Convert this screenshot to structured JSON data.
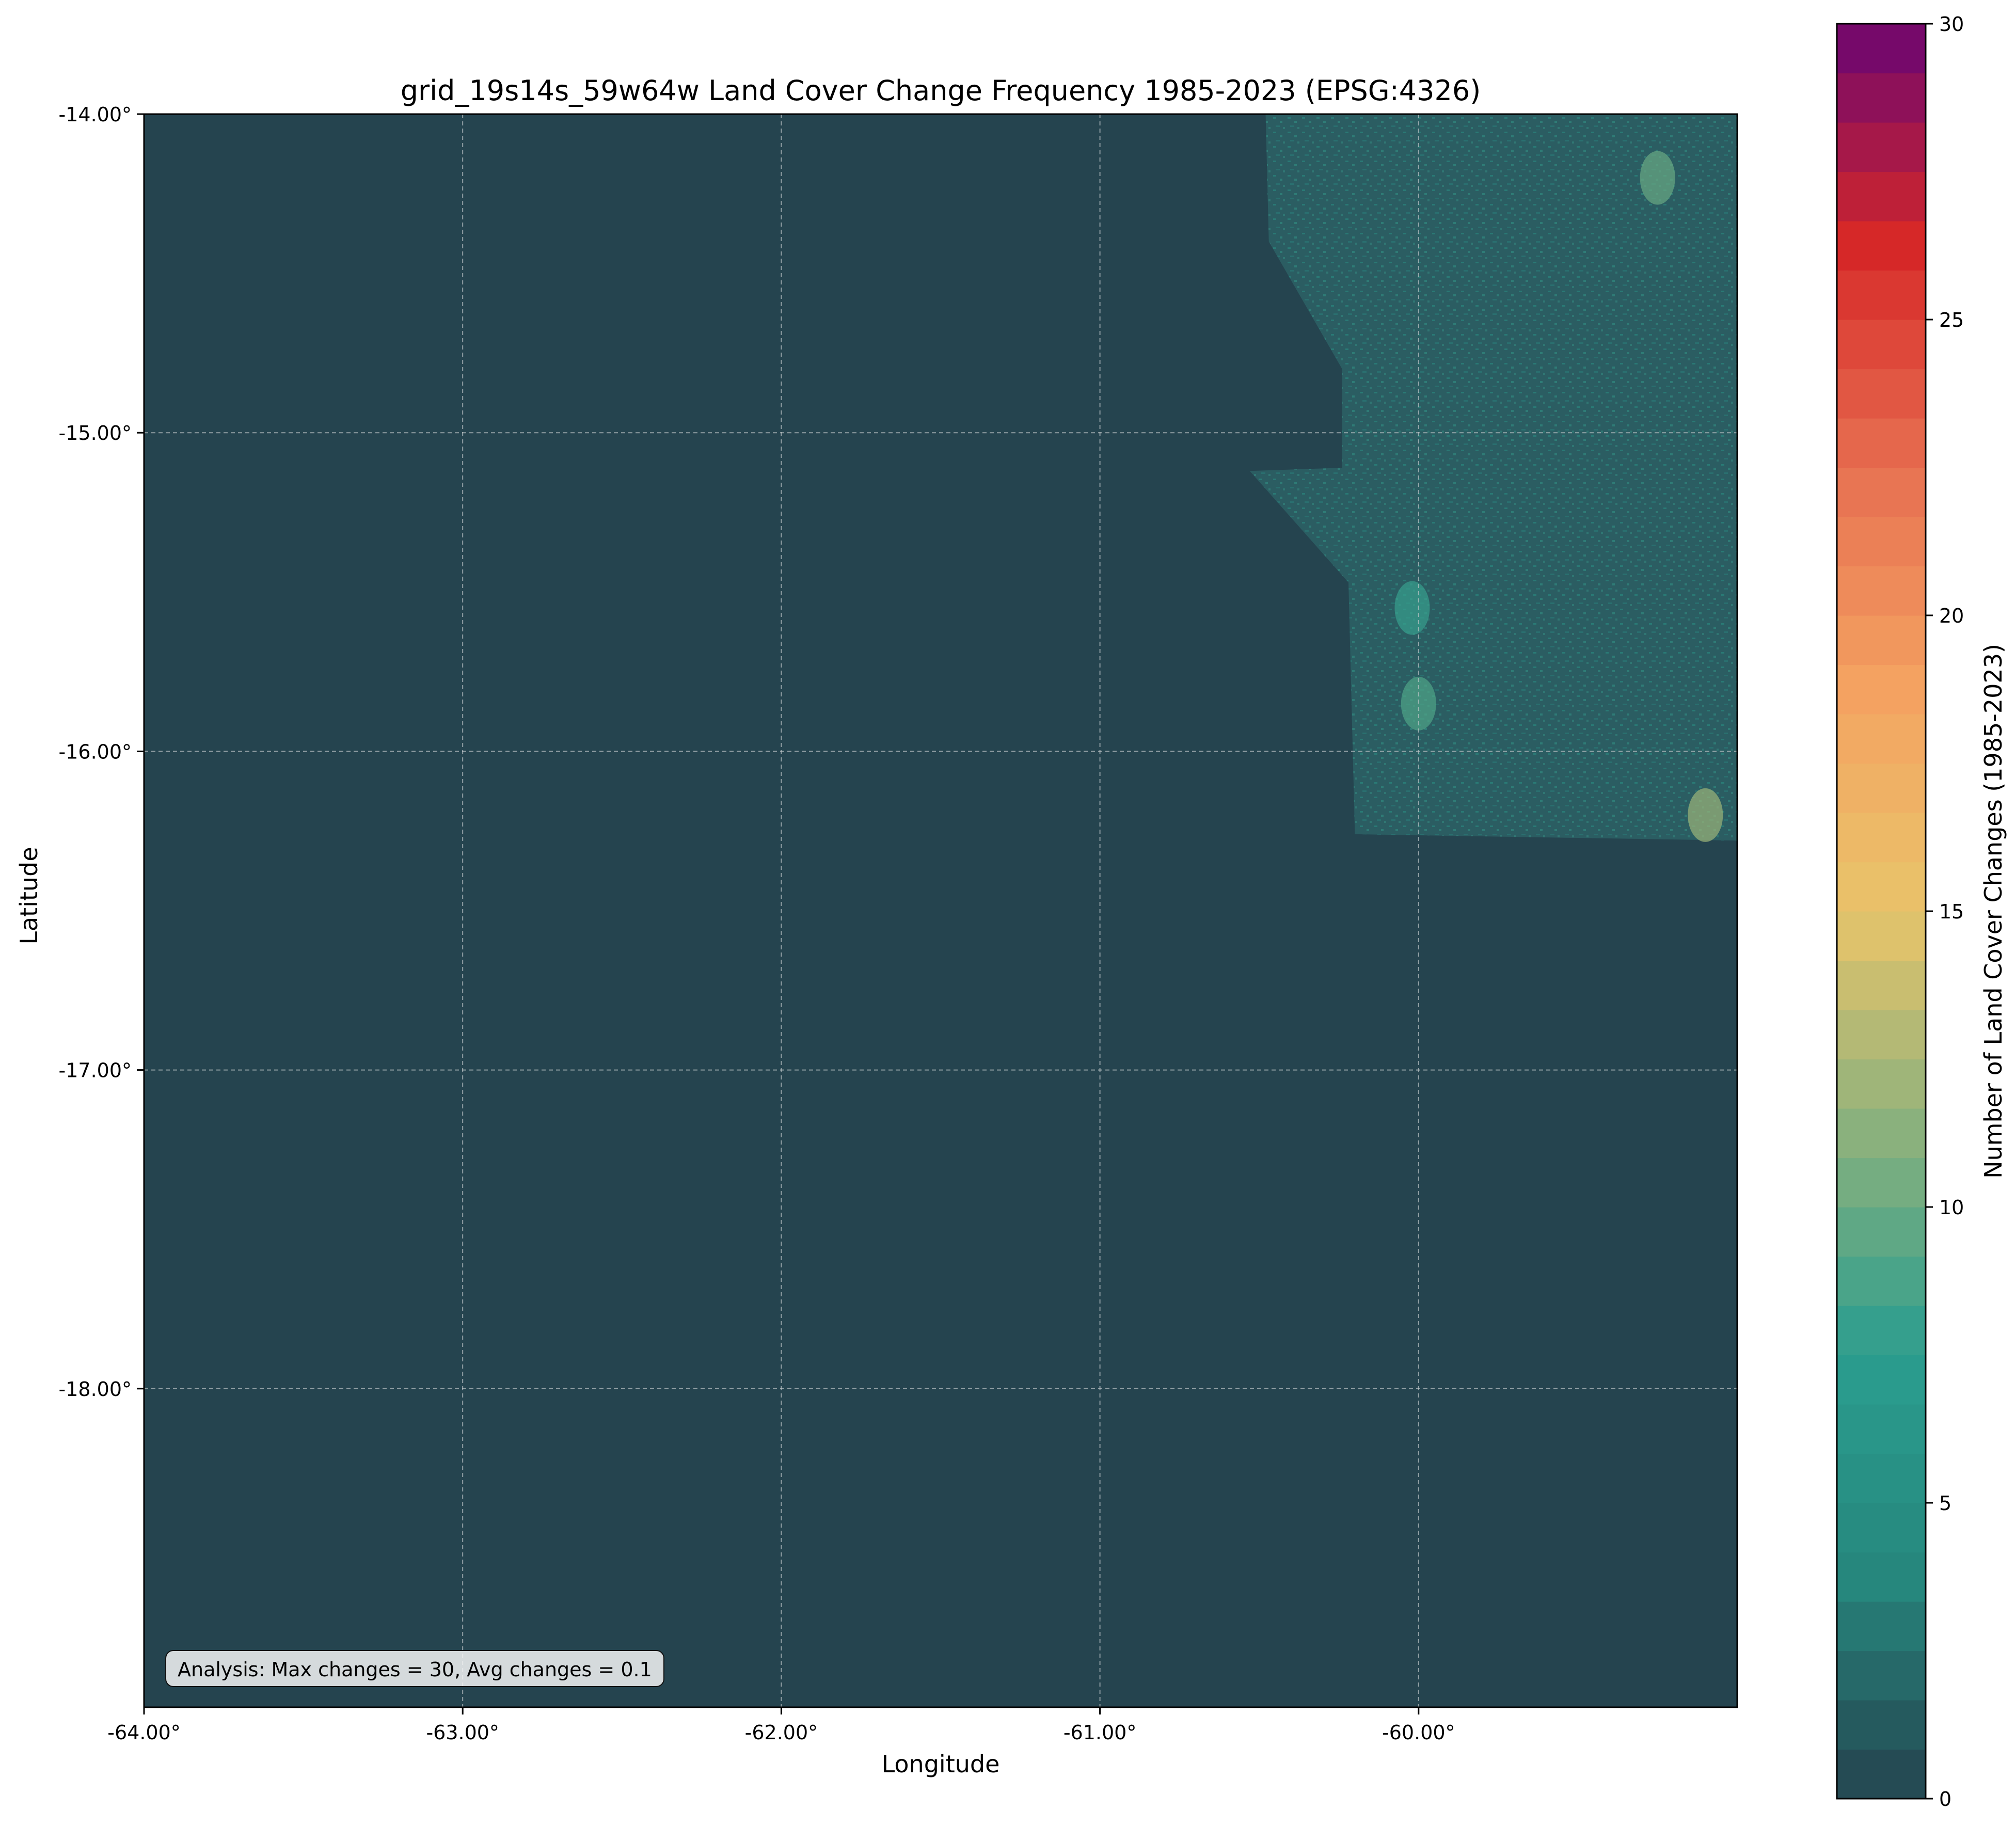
{
  "map": {
    "title": "grid_19s14s_59w64w Land Cover Change Frequency 1985-2023 (EPSG:4326)",
    "xlabel": "Longitude",
    "ylabel": "Latitude",
    "x_ticks": [
      "-64.00°",
      "-63.00°",
      "-62.00°",
      "-61.00°",
      "-60.00°"
    ],
    "y_ticks": [
      "-14.00°",
      "-15.00°",
      "-16.00°",
      "-17.00°",
      "-18.00°"
    ],
    "x_range": [
      -64.0,
      -59.0
    ],
    "y_range": [
      -19.0,
      -14.0
    ],
    "background_color": "#25444f",
    "grid": "dashed, light gray",
    "annotation": "Analysis: Max changes = 30, Avg changes = 0.1"
  },
  "colorbar": {
    "label": "Number of Land Cover Changes (1985-2023)",
    "ticks": [
      "0",
      "5",
      "10",
      "15",
      "20",
      "25",
      "30"
    ],
    "range": [
      0,
      30
    ],
    "levels": 36,
    "stops": [
      "#25444f",
      "#26877d",
      "#2a9d8f",
      "#8ab17d",
      "#e9c46a",
      "#f4a261",
      "#e76f51",
      "#d62828",
      "#6a0572"
    ]
  },
  "chart_data": {
    "type": "heatmap",
    "title": "grid_19s14s_59w64w Land Cover Change Frequency 1985-2023 (EPSG:4326)",
    "xlabel": "Longitude",
    "ylabel": "Latitude",
    "xlim": [
      -64.0,
      -59.0
    ],
    "ylim": [
      -19.0,
      -14.0
    ],
    "colorbar_label": "Number of Land Cover Changes (1985-2023)",
    "value_range": [
      0,
      30
    ],
    "max_changes": 30,
    "avg_changes": 0.1,
    "data_region_lonlat": [
      [
        -60.48,
        -14.0
      ],
      [
        -59.0,
        -14.0
      ],
      [
        -59.0,
        -16.28
      ],
      [
        -60.2,
        -16.26
      ],
      [
        -60.22,
        -15.47
      ],
      [
        -60.53,
        -15.12
      ],
      [
        -60.24,
        -15.11
      ],
      [
        -60.24,
        -14.8
      ],
      [
        -60.47,
        -14.4
      ]
    ],
    "hotspots": [
      {
        "lon": -59.25,
        "lat": -14.2,
        "value": 10
      },
      {
        "lon": -59.1,
        "lat": -16.2,
        "value": 12
      },
      {
        "lon": -60.0,
        "lat": -15.85,
        "value": 9
      },
      {
        "lon": -60.02,
        "lat": -15.55,
        "value": 8
      }
    ]
  }
}
